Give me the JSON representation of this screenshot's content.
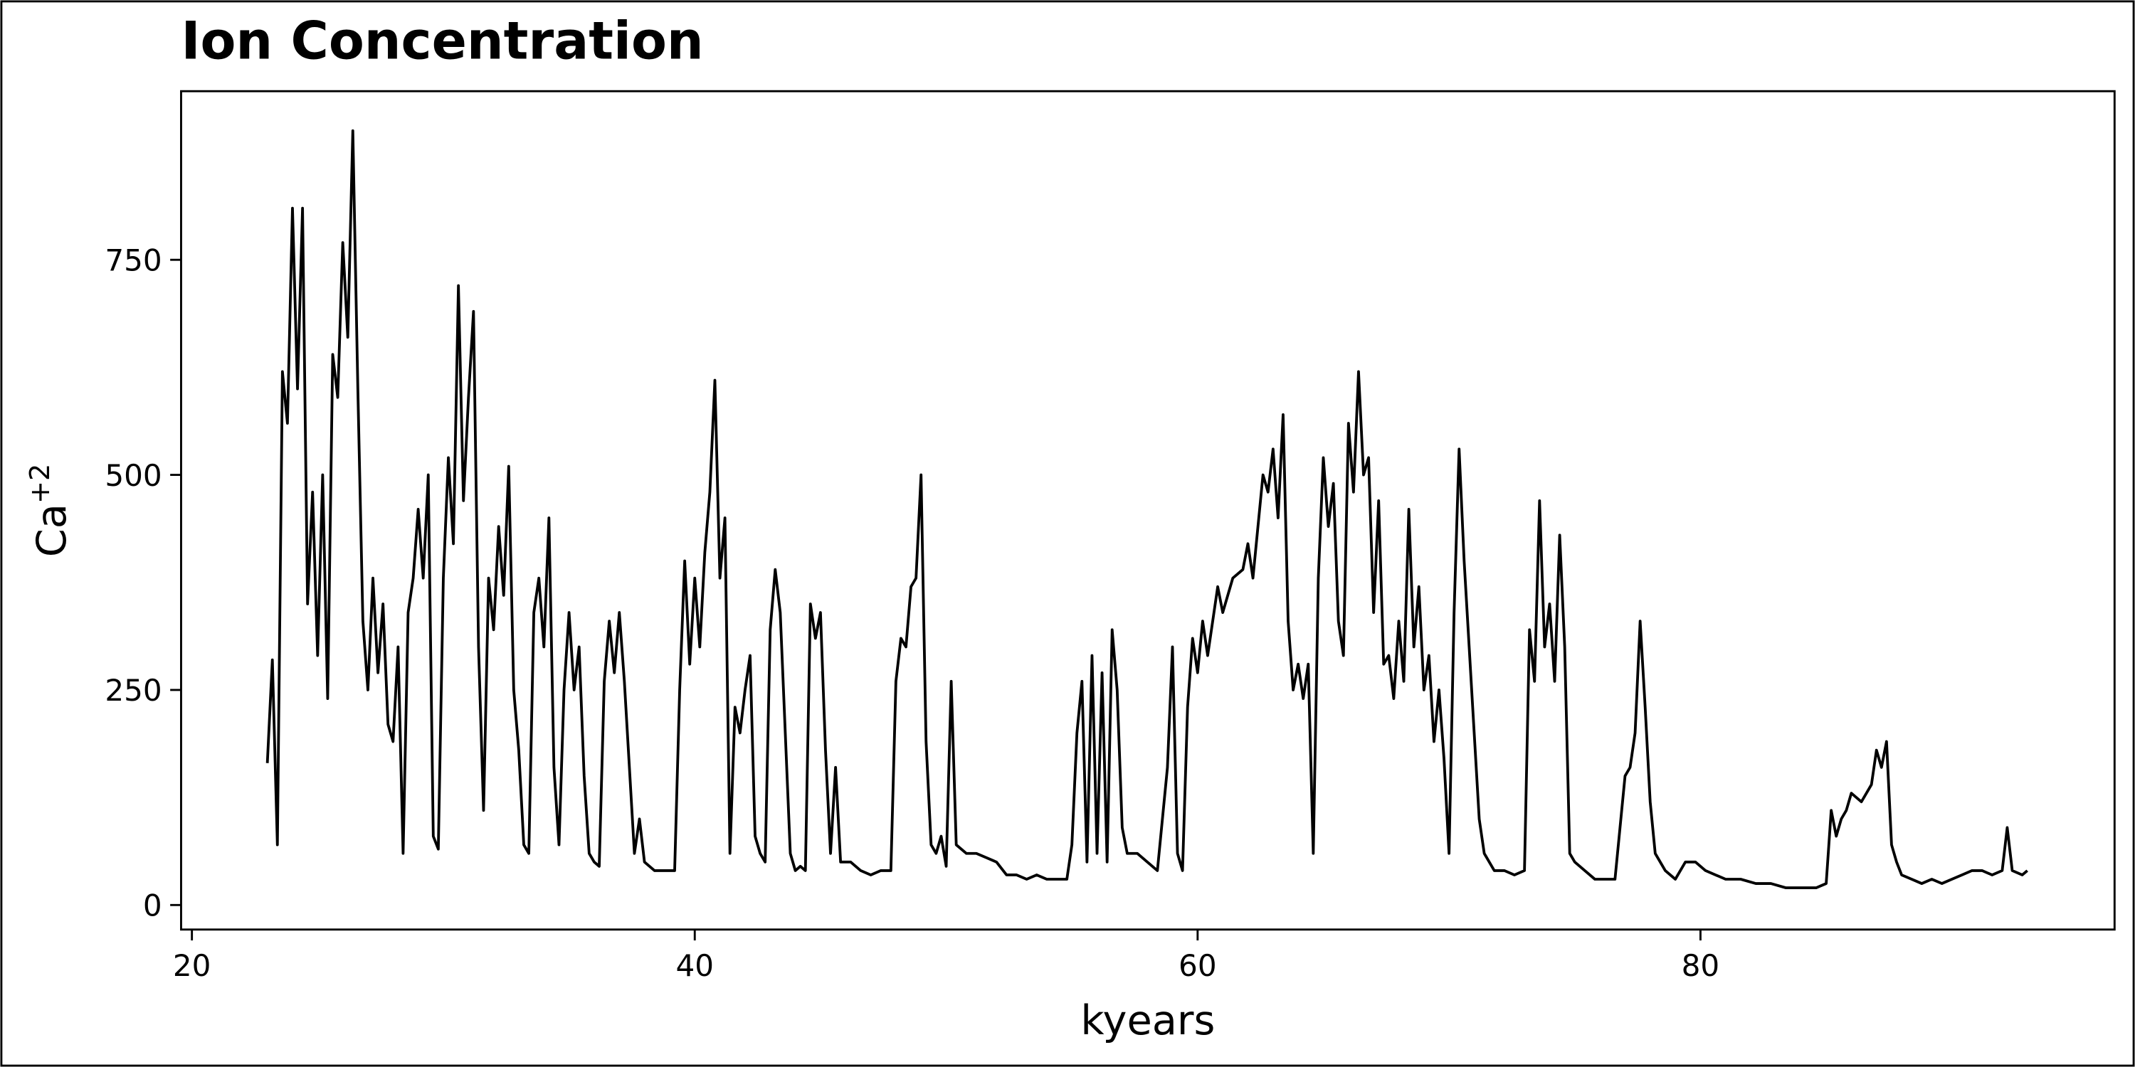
{
  "chart_data": {
    "type": "line",
    "title": "Ion Concentration",
    "x_label": "kyears",
    "y_label": "Ca",
    "y_label_superscript": "+2",
    "color": "#000000",
    "xlim": [
      19.57,
      96.47
    ],
    "ylim": [
      -28.5,
      946
    ],
    "xticks": [
      20,
      40,
      60,
      80
    ],
    "yticks": [
      0,
      250,
      500,
      750
    ],
    "x": [
      23.0,
      23.2,
      23.4,
      23.6,
      23.8,
      24.0,
      24.2,
      24.4,
      24.6,
      24.8,
      25.0,
      25.2,
      25.4,
      25.6,
      25.8,
      26.0,
      26.2,
      26.4,
      26.6,
      26.8,
      27.0,
      27.2,
      27.4,
      27.6,
      27.8,
      28.0,
      28.2,
      28.4,
      28.6,
      28.8,
      29.0,
      29.2,
      29.4,
      29.6,
      29.8,
      30.0,
      30.2,
      30.4,
      30.6,
      30.8,
      31.0,
      31.2,
      31.4,
      31.6,
      31.8,
      32.0,
      32.2,
      32.4,
      32.6,
      32.8,
      33.0,
      33.2,
      33.4,
      33.6,
      33.8,
      34.0,
      34.2,
      34.4,
      34.6,
      34.8,
      35.0,
      35.2,
      35.4,
      35.6,
      35.8,
      36.0,
      36.2,
      36.4,
      36.6,
      36.8,
      37.0,
      37.2,
      37.4,
      37.6,
      37.8,
      38.0,
      38.4,
      38.8,
      39.2,
      39.4,
      39.6,
      39.8,
      40.0,
      40.2,
      40.4,
      40.6,
      40.8,
      41.0,
      41.2,
      41.4,
      41.6,
      41.8,
      42.0,
      42.2,
      42.4,
      42.6,
      42.8,
      43.0,
      43.2,
      43.4,
      43.6,
      43.8,
      44.0,
      44.2,
      44.4,
      44.6,
      44.8,
      45.0,
      45.2,
      45.4,
      45.6,
      45.8,
      46.2,
      46.6,
      47.0,
      47.4,
      47.8,
      48.0,
      48.2,
      48.4,
      48.6,
      48.8,
      49.0,
      49.2,
      49.4,
      49.6,
      49.8,
      50.0,
      50.2,
      50.4,
      50.8,
      51.2,
      51.6,
      52.0,
      52.4,
      52.8,
      53.2,
      53.6,
      54.0,
      54.4,
      54.8,
      55.0,
      55.2,
      55.4,
      55.6,
      55.8,
      56.0,
      56.2,
      56.4,
      56.6,
      56.8,
      57.0,
      57.2,
      57.6,
      58.0,
      58.4,
      58.8,
      59.0,
      59.2,
      59.4,
      59.6,
      59.8,
      60.0,
      60.2,
      60.4,
      60.8,
      61.0,
      61.4,
      61.8,
      62.0,
      62.2,
      62.6,
      62.8,
      63.0,
      63.2,
      63.4,
      63.6,
      63.8,
      64.0,
      64.2,
      64.4,
      64.6,
      64.8,
      65.0,
      65.2,
      65.4,
      65.6,
      65.8,
      66.0,
      66.2,
      66.4,
      66.6,
      66.8,
      67.0,
      67.2,
      67.4,
      67.6,
      67.8,
      68.0,
      68.2,
      68.4,
      68.6,
      68.8,
      69.0,
      69.2,
      69.4,
      69.6,
      69.8,
      70.0,
      70.2,
      70.4,
      70.6,
      70.8,
      71.0,
      71.2,
      71.4,
      71.8,
      72.2,
      72.6,
      73.0,
      73.2,
      73.4,
      73.6,
      73.8,
      74.0,
      74.2,
      74.4,
      74.6,
      74.8,
      75.0,
      75.4,
      75.8,
      76.2,
      76.6,
      77.0,
      77.2,
      77.4,
      77.6,
      77.8,
      78.0,
      78.2,
      78.6,
      79.0,
      79.4,
      79.8,
      80.2,
      80.6,
      81.0,
      81.6,
      82.2,
      82.8,
      83.4,
      84.0,
      84.6,
      85.0,
      85.2,
      85.4,
      85.6,
      85.8,
      86.0,
      86.4,
      86.8,
      87.0,
      87.2,
      87.4,
      87.6,
      87.8,
      88.0,
      88.4,
      88.8,
      89.2,
      89.6,
      90.0,
      90.4,
      90.8,
      91.2,
      91.6,
      92.0,
      92.2,
      92.4,
      92.8,
      93.0
    ],
    "values": [
      165,
      285,
      70,
      620,
      560,
      810,
      600,
      810,
      350,
      480,
      290,
      500,
      240,
      640,
      590,
      770,
      660,
      900,
      600,
      330,
      250,
      380,
      270,
      350,
      210,
      190,
      300,
      60,
      340,
      380,
      460,
      380,
      500,
      80,
      65,
      380,
      520,
      420,
      720,
      470,
      590,
      690,
      300,
      110,
      380,
      320,
      440,
      360,
      510,
      250,
      180,
      70,
      60,
      340,
      380,
      300,
      450,
      160,
      70,
      250,
      340,
      250,
      300,
      150,
      60,
      50,
      45,
      260,
      330,
      270,
      340,
      260,
      160,
      60,
      100,
      50,
      40,
      40,
      40,
      250,
      400,
      280,
      380,
      300,
      410,
      480,
      610,
      380,
      450,
      60,
      230,
      200,
      250,
      290,
      80,
      60,
      50,
      320,
      390,
      340,
      200,
      60,
      40,
      45,
      40,
      350,
      310,
      340,
      180,
      60,
      160,
      50,
      50,
      40,
      35,
      40,
      40,
      260,
      310,
      300,
      370,
      380,
      500,
      190,
      70,
      60,
      80,
      45,
      260,
      70,
      60,
      60,
      55,
      50,
      35,
      35,
      30,
      35,
      30,
      30,
      30,
      70,
      200,
      260,
      50,
      290,
      60,
      270,
      50,
      320,
      250,
      90,
      60,
      60,
      50,
      40,
      160,
      300,
      60,
      40,
      230,
      310,
      270,
      330,
      290,
      370,
      340,
      380,
      390,
      420,
      380,
      500,
      480,
      530,
      450,
      570,
      330,
      250,
      280,
      240,
      280,
      60,
      380,
      520,
      440,
      490,
      330,
      290,
      560,
      480,
      620,
      500,
      520,
      340,
      470,
      280,
      290,
      240,
      330,
      260,
      460,
      300,
      370,
      250,
      290,
      190,
      250,
      170,
      60,
      340,
      530,
      400,
      300,
      200,
      100,
      60,
      40,
      40,
      35,
      40,
      320,
      260,
      470,
      300,
      350,
      260,
      430,
      300,
      60,
      50,
      40,
      30,
      30,
      30,
      150,
      160,
      200,
      330,
      230,
      120,
      60,
      40,
      30,
      50,
      50,
      40,
      35,
      30,
      30,
      25,
      25,
      20,
      20,
      20,
      25,
      110,
      80,
      100,
      110,
      130,
      120,
      140,
      180,
      160,
      190,
      70,
      50,
      35,
      30,
      25,
      30,
      25,
      30,
      35,
      40,
      40,
      35,
      40,
      90,
      40,
      35,
      40
    ]
  }
}
